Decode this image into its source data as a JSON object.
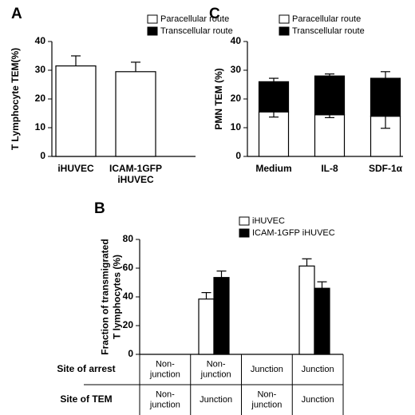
{
  "chart_data": [
    {
      "type": "bar",
      "panel": "A",
      "ylabel": "T Lymphocyte TEM(%)",
      "categories": [
        [
          "iHUVEC"
        ],
        [
          "ICAM-1GFP",
          "iHUVEC"
        ]
      ],
      "legend": [
        {
          "name": "Paracellular route",
          "color": "#ffffff"
        },
        {
          "name": "Transcellular route",
          "color": "#000000"
        }
      ],
      "series": [
        {
          "color": "#ffffff",
          "values": [
            31.5,
            29.5
          ],
          "errors": [
            3.5,
            3.3
          ],
          "error_direction": "up"
        }
      ],
      "ylim": [
        0,
        40
      ],
      "yticks": [
        0,
        10,
        20,
        30,
        40
      ]
    },
    {
      "type": "stacked_bar",
      "panel": "C",
      "ylabel": "PMN TEM (%)",
      "categories": [
        [
          "Medium"
        ],
        [
          "IL-8"
        ],
        [
          "SDF-1α"
        ]
      ],
      "legend": [
        {
          "name": "Paracellular route",
          "color": "#ffffff"
        },
        {
          "name": "Transcellular route",
          "color": "#000000"
        }
      ],
      "series": [
        {
          "color": "#ffffff",
          "values": [
            15.5,
            14.5,
            14
          ],
          "errors": [
            1.8,
            1,
            4.2
          ],
          "error_direction": "down"
        },
        {
          "color": "#000000",
          "values": [
            10.5,
            13.5,
            13.2
          ],
          "errors": [
            1.2,
            0.7,
            2.3
          ],
          "error_direction": "up"
        }
      ],
      "ylim": [
        0,
        40
      ],
      "yticks": [
        0,
        10,
        20,
        30,
        40
      ]
    },
    {
      "type": "grouped_bar",
      "panel": "B",
      "ylabel": [
        "Fraction of transmigrated",
        "T lymphocytes (%)"
      ],
      "categories": [
        null,
        null,
        null,
        null
      ],
      "series": [
        {
          "name": "iHUVEC",
          "color": "#ffffff",
          "values": [
            0,
            38.5,
            0,
            61.5
          ],
          "errors": [
            0,
            4.5,
            0,
            5
          ],
          "error_direction": "up"
        },
        {
          "name": "ICAM-1GFP iHUVEC",
          "color": "#000000",
          "values": [
            0,
            53.5,
            0,
            46
          ],
          "errors": [
            0,
            4.5,
            0,
            4.5
          ],
          "error_direction": "up"
        }
      ],
      "ylim": [
        0,
        80
      ],
      "yticks": [
        0,
        20,
        40,
        60,
        80
      ],
      "table": {
        "rows": [
          {
            "label": "Site of arrest",
            "cells": [
              [
                "Non-",
                "junction"
              ],
              [
                "Non-",
                "junction"
              ],
              [
                "Junction"
              ],
              [
                "Junction"
              ]
            ]
          },
          {
            "label": "Site of TEM",
            "cells": [
              [
                "Non-",
                "junction"
              ],
              [
                "Junction"
              ],
              [
                "Non-",
                "junction"
              ],
              [
                "Junction"
              ]
            ]
          }
        ]
      }
    }
  ]
}
